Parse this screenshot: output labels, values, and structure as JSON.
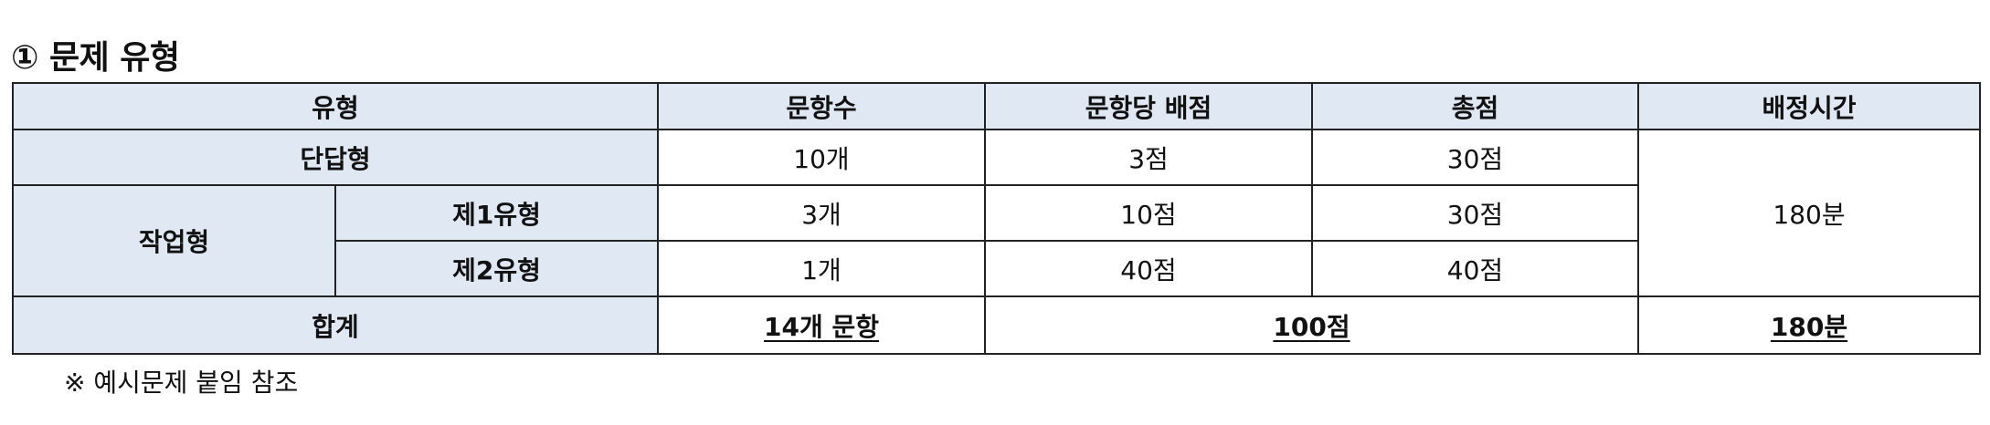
{
  "title": "① 문제 유형",
  "table": {
    "headers": {
      "type": "유형",
      "count": "문항수",
      "per_item": "문항당 배점",
      "total": "총점",
      "time": "배정시간"
    },
    "rows": {
      "short_answer": {
        "label": "단답형",
        "count": "10개",
        "per_item": "3점",
        "total": "30점"
      },
      "task_group_label": "작업형",
      "task1": {
        "label": "제1유형",
        "count": "3개",
        "per_item": "10점",
        "total": "30점"
      },
      "task2": {
        "label": "제2유형",
        "count": "1개",
        "per_item": "40점",
        "total": "40점"
      },
      "time_value": "180분"
    },
    "sum": {
      "label": "합계",
      "count": "14개 문항",
      "score": "100점",
      "time": "180분"
    }
  },
  "note": "※ 예시문제 붙임 참조"
}
